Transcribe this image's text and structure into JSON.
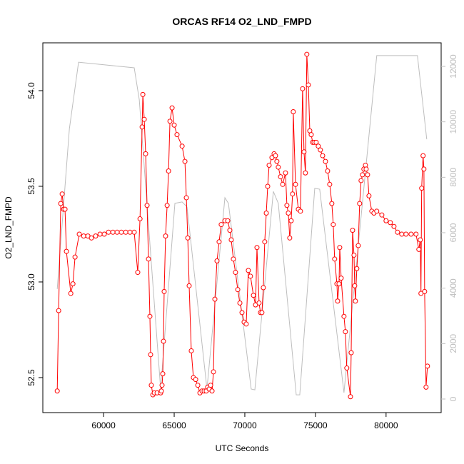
{
  "chart_data": {
    "type": "line",
    "title": "ORCAS RF14 O2_LND_FMPD",
    "x_label": "UTC Seconds",
    "y_label": "O2_LND_FMPD",
    "xlim": [
      55700,
      83900
    ],
    "xticks": [
      60000,
      65000,
      70000,
      75000,
      80000
    ],
    "ylim": [
      52.317,
      54.25
    ],
    "yticks": [
      52.5,
      {
        "value": 53,
        "label": "53.0"
      },
      53.5,
      {
        "value": 54,
        "label": "54.0"
      }
    ],
    "y2lim": [
      -490,
      12850
    ],
    "y2ticks": [
      0,
      2000,
      4000,
      6000,
      8000,
      10000,
      12000
    ],
    "y2_color": "#bebebe",
    "series": [
      {
        "color": "#bebebe",
        "axis": "y2",
        "marker": "none",
        "x": [
          56720,
          57580,
          58230,
          62170,
          62530,
          64040,
          65050,
          65560,
          65910,
          67320,
          68590,
          68840,
          70450,
          70710,
          72020,
          72370,
          73640,
          73890,
          74950,
          75300,
          77020,
          79340,
          82220,
          82880
        ],
        "values": [
          3970,
          9750,
          12150,
          11950,
          10790,
          360,
          7060,
          7110,
          6930,
          360,
          7260,
          7060,
          360,
          330,
          7490,
          7060,
          150,
          150,
          7600,
          7570,
          230,
          12390,
          12390,
          9370
        ]
      },
      {
        "color": "#ff0000",
        "marker": "circle",
        "x": [
          56720,
          56820,
          56970,
          57070,
          57170,
          57270,
          57370,
          57680,
          57830,
          57980,
          58280,
          58590,
          58890,
          59140,
          59440,
          59750,
          60050,
          60350,
          60660,
          60960,
          61260,
          61570,
          61870,
          62170,
          62420,
          62580,
          62730,
          62780,
          62880,
          62980,
          63080,
          63180,
          63280,
          63330,
          63380,
          63490,
          63590,
          63790,
          64040,
          64090,
          64140,
          64190,
          64240,
          64290,
          64390,
          64500,
          64600,
          64700,
          64850,
          65000,
          65200,
          65560,
          65760,
          65860,
          65960,
          66060,
          66210,
          66360,
          66520,
          66670,
          66820,
          66970,
          67120,
          67270,
          67370,
          67480,
          67580,
          67680,
          67780,
          67880,
          68030,
          68180,
          68330,
          68590,
          68790,
          68940,
          69040,
          69190,
          69340,
          69500,
          69650,
          69800,
          69950,
          70100,
          70250,
          70400,
          70610,
          70760,
          70860,
          71010,
          71110,
          71210,
          71310,
          71410,
          71520,
          71620,
          71720,
          71920,
          72070,
          72170,
          72270,
          72370,
          72530,
          72680,
          72880,
          72980,
          73080,
          73180,
          73280,
          73380,
          73430,
          73590,
          73790,
          73940,
          74090,
          74190,
          74290,
          74390,
          74500,
          74600,
          74700,
          74800,
          74900,
          75050,
          75200,
          75350,
          75510,
          75710,
          75860,
          76010,
          76160,
          76260,
          76360,
          76520,
          76570,
          76670,
          76720,
          76820,
          77020,
          77120,
          77220,
          77480,
          77530,
          77630,
          77730,
          77780,
          77830,
          77930,
          78030,
          78130,
          78230,
          78330,
          78430,
          78540,
          78590,
          78690,
          78790,
          78990,
          79140,
          79340,
          79700,
          80000,
          80300,
          80560,
          80810,
          81110,
          81410,
          81770,
          82120,
          82320,
          82420,
          82470,
          82520,
          82620,
          82680,
          82730,
          82830,
          82930
        ],
        "values": [
          52.43,
          52.85,
          53.41,
          53.46,
          53.38,
          53.38,
          53.16,
          52.94,
          52.99,
          53.13,
          53.25,
          53.24,
          53.24,
          53.23,
          53.24,
          53.25,
          53.25,
          53.26,
          53.26,
          53.26,
          53.26,
          53.26,
          53.26,
          53.26,
          53.05,
          53.33,
          53.81,
          53.98,
          53.85,
          53.67,
          53.4,
          53.12,
          52.82,
          52.62,
          52.46,
          52.41,
          52.42,
          52.42,
          52.42,
          52.43,
          52.46,
          52.52,
          52.69,
          52.95,
          53.24,
          53.4,
          53.58,
          53.84,
          53.91,
          53.82,
          53.77,
          53.71,
          53.63,
          53.44,
          53.23,
          52.98,
          52.64,
          52.5,
          52.49,
          52.46,
          52.42,
          52.43,
          52.43,
          52.43,
          52.45,
          52.44,
          52.46,
          52.43,
          52.53,
          52.91,
          53.11,
          53.21,
          53.3,
          53.32,
          53.32,
          53.27,
          53.22,
          53.12,
          53.05,
          52.96,
          52.89,
          52.84,
          52.79,
          52.78,
          53.06,
          53.03,
          52.93,
          52.88,
          53.18,
          52.89,
          52.84,
          52.84,
          52.97,
          53.21,
          53.36,
          53.5,
          53.61,
          53.65,
          53.67,
          53.66,
          53.63,
          53.6,
          53.55,
          53.51,
          53.57,
          53.4,
          53.36,
          53.23,
          53.32,
          53.46,
          53.89,
          53.51,
          53.38,
          53.37,
          54.01,
          53.68,
          53.57,
          54.19,
          54.03,
          53.79,
          53.77,
          53.73,
          53.73,
          53.73,
          53.71,
          53.69,
          53.66,
          53.63,
          53.58,
          53.51,
          53.41,
          53.3,
          53.12,
          52.99,
          52.9,
          52.99,
          53.18,
          53.02,
          52.82,
          52.74,
          52.55,
          52.4,
          52.63,
          53.27,
          53.14,
          52.98,
          52.9,
          53.07,
          53.19,
          53.41,
          53.53,
          53.56,
          53.59,
          53.61,
          53.59,
          53.56,
          53.45,
          53.37,
          53.36,
          53.37,
          53.35,
          53.32,
          53.31,
          53.29,
          53.26,
          53.25,
          53.25,
          53.25,
          53.25,
          53.17,
          53.22,
          52.94,
          53.49,
          53.66,
          53.59,
          52.95,
          52.45,
          52.56
        ]
      }
    ]
  }
}
